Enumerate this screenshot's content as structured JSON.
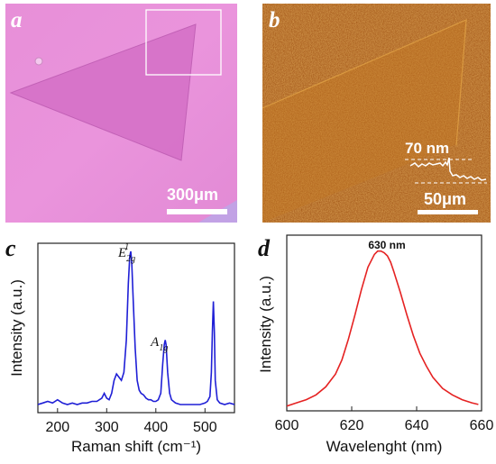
{
  "panels": {
    "a": {
      "letter": "a",
      "scale_label": "300μm"
    },
    "b": {
      "letter": "b",
      "scale_label": "50μm",
      "height_label": "70 nm"
    },
    "c": {
      "letter": "c"
    },
    "d": {
      "letter": "d"
    }
  },
  "chart_data": [
    {
      "panel": "c",
      "type": "line",
      "xlabel": "Raman shift (cm⁻¹)",
      "ylabel": "Intensity (a.u.)",
      "xlim": [
        160,
        560
      ],
      "ylim": [
        0,
        1.05
      ],
      "xticks": [
        200,
        300,
        400,
        500
      ],
      "yticks_shown": false,
      "color": "#1f1fd6",
      "peak_labels": [
        {
          "text": "E2g1",
          "x": 349
        },
        {
          "text": "A1g",
          "x": 419
        }
      ],
      "series": [
        {
          "x": [
            160,
            170,
            180,
            190,
            200,
            210,
            220,
            230,
            240,
            250,
            260,
            270,
            280,
            290,
            295,
            300,
            305,
            310,
            315,
            320,
            325,
            330,
            335,
            340,
            344,
            347,
            349,
            351,
            354,
            358,
            362,
            366,
            370,
            375,
            380,
            385,
            390,
            395,
            400,
            405,
            410,
            414,
            417,
            419,
            421,
            424,
            428,
            432,
            440,
            450,
            460,
            470,
            480,
            490,
            500,
            505,
            510,
            513,
            515,
            517,
            519,
            521,
            525,
            530,
            540,
            550,
            560
          ],
          "y": [
            0.05,
            0.06,
            0.07,
            0.06,
            0.08,
            0.06,
            0.05,
            0.06,
            0.05,
            0.06,
            0.06,
            0.07,
            0.07,
            0.09,
            0.12,
            0.09,
            0.08,
            0.12,
            0.2,
            0.24,
            0.22,
            0.2,
            0.25,
            0.45,
            0.8,
            0.97,
            1.0,
            0.93,
            0.7,
            0.4,
            0.2,
            0.14,
            0.12,
            0.11,
            0.09,
            0.08,
            0.08,
            0.07,
            0.07,
            0.08,
            0.12,
            0.3,
            0.42,
            0.45,
            0.42,
            0.25,
            0.12,
            0.08,
            0.06,
            0.05,
            0.05,
            0.05,
            0.05,
            0.05,
            0.06,
            0.07,
            0.1,
            0.25,
            0.5,
            0.69,
            0.5,
            0.2,
            0.08,
            0.06,
            0.05,
            0.06,
            0.05
          ]
        }
      ]
    },
    {
      "panel": "d",
      "type": "line",
      "xlabel": "Wavelenght (nm)",
      "ylabel": "Intensity (a.u.)",
      "xlim": [
        600,
        660
      ],
      "ylim": [
        0,
        1.1
      ],
      "xticks": [
        600,
        620,
        640,
        660
      ],
      "yticks_shown": false,
      "color": "#e52222",
      "annotation": "630 nm",
      "series": [
        {
          "x": [
            600,
            603,
            606,
            609,
            612,
            615,
            617,
            619,
            621,
            623,
            625,
            627,
            628,
            629,
            630,
            631,
            632,
            633,
            635,
            637,
            639,
            641,
            643,
            645,
            648,
            651,
            654,
            657,
            659
          ],
          "y": [
            0.03,
            0.05,
            0.07,
            0.1,
            0.15,
            0.23,
            0.32,
            0.45,
            0.6,
            0.76,
            0.9,
            0.98,
            1.0,
            1.0,
            0.99,
            0.97,
            0.93,
            0.87,
            0.74,
            0.6,
            0.47,
            0.36,
            0.28,
            0.21,
            0.14,
            0.1,
            0.07,
            0.05,
            0.04
          ]
        }
      ]
    }
  ]
}
